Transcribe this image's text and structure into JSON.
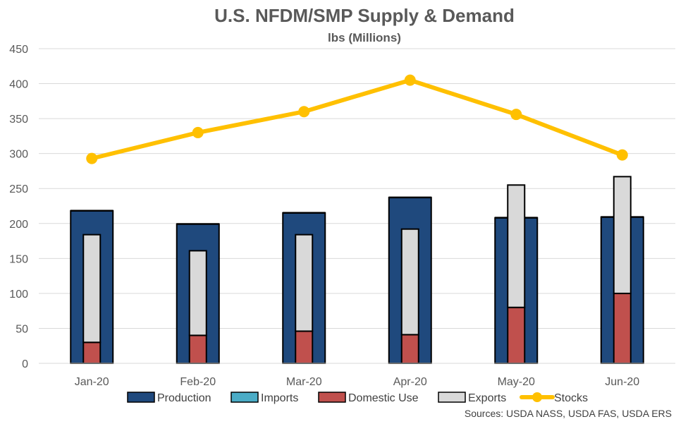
{
  "chart_data": {
    "type": "bar",
    "title": "U.S. NFDM/SMP Supply & Demand",
    "subtitle": "lbs (Millions)",
    "categories": [
      "Jan-20",
      "Feb-20",
      "Mar-20",
      "Apr-20",
      "May-20",
      "Jun-20"
    ],
    "ylim": [
      0,
      450
    ],
    "yticks": [
      0,
      50,
      100,
      150,
      200,
      250,
      300,
      350,
      400,
      450
    ],
    "grid": true,
    "legend_position": "bottom",
    "series": [
      {
        "name": "Production",
        "type": "bar",
        "color": "#1F497D",
        "values": [
          218,
          199,
          215,
          237,
          208,
          209
        ]
      },
      {
        "name": "Imports",
        "type": "bar",
        "color": "#4BACC6",
        "values": [
          1,
          1,
          1,
          1,
          1,
          1
        ]
      },
      {
        "name": "Domestic Use",
        "type": "stacked-bar",
        "color": "#C0504D",
        "values": [
          30,
          40,
          46,
          41,
          80,
          100
        ]
      },
      {
        "name": "Exports",
        "type": "stacked-bar",
        "color": "#D9D9D9",
        "values": [
          154,
          121,
          138,
          151,
          175,
          167
        ]
      },
      {
        "name": "Stocks",
        "type": "line",
        "color": "#FFC000",
        "values": [
          293,
          330,
          360,
          405,
          356,
          298
        ]
      }
    ],
    "source": "Sources: USDA NASS, USDA FAS, USDA ERS"
  }
}
